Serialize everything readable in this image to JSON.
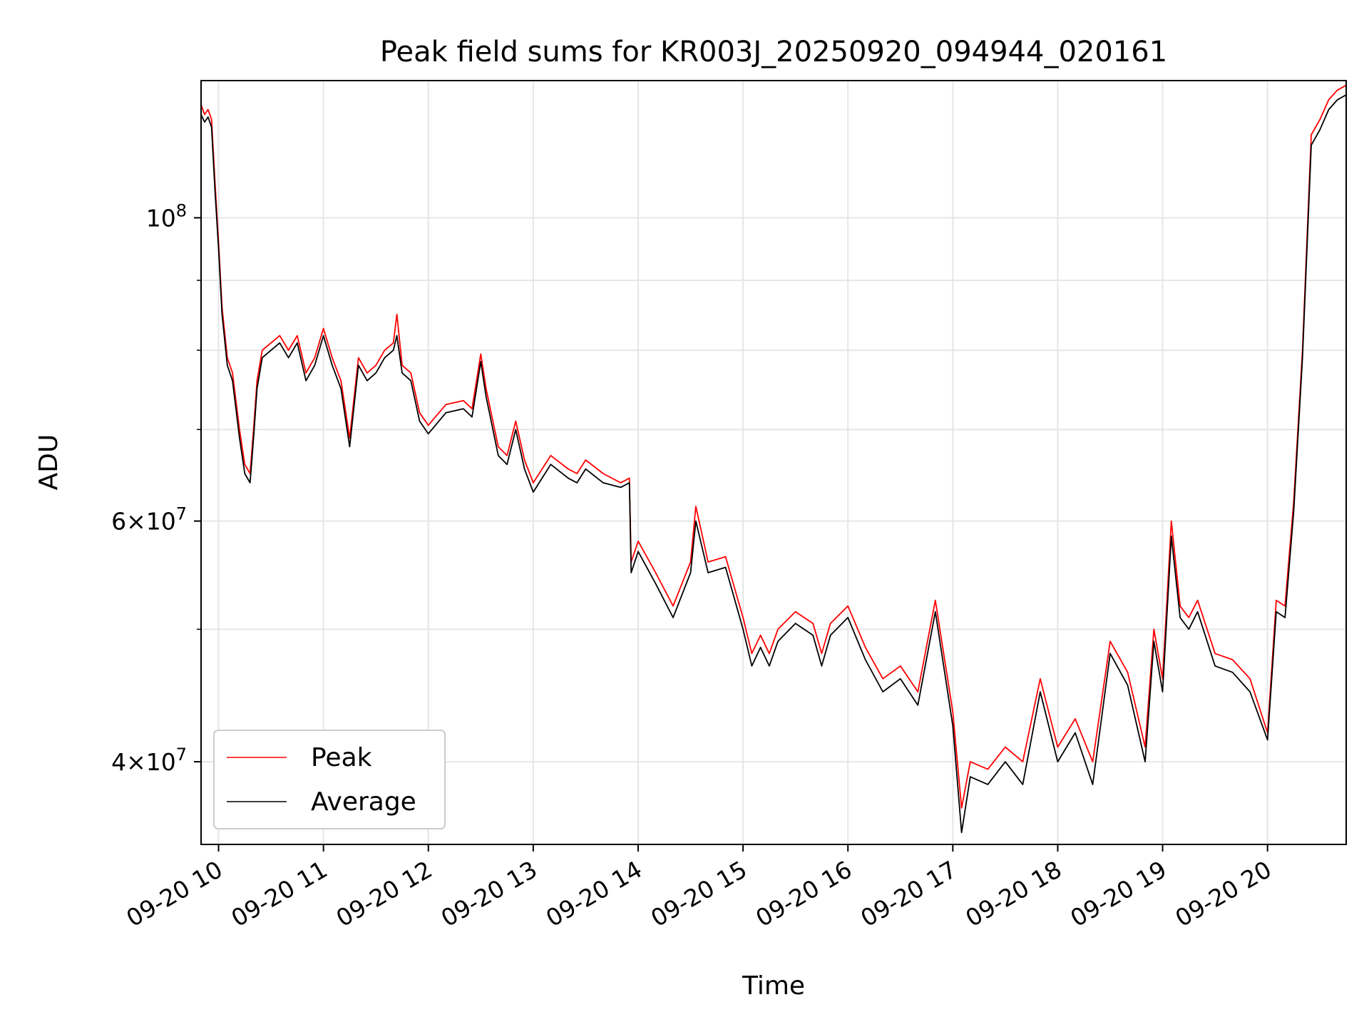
{
  "chart_data": {
    "type": "line",
    "title": "Peak field sums for KR003J_20250920_094944_020161",
    "xlabel": "Time",
    "ylabel": "ADU",
    "x_range_hours": [
      "2025-09-20 09:50",
      "2025-09-20 20:45"
    ],
    "ylim": [
      34800000,
      126000000
    ],
    "yscale": "log",
    "grid": true,
    "legend_position": "lower-left",
    "x_tick_labels": [
      "09-20 10",
      "09-20 11",
      "09-20 12",
      "09-20 13",
      "09-20 14",
      "09-20 15",
      "09-20 16",
      "09-20 17",
      "09-20 18",
      "09-20 19",
      "09-20 20"
    ],
    "x_ticks": [
      "2025-09-20 10:00",
      "2025-09-20 11:00",
      "2025-09-20 12:00",
      "2025-09-20 13:00",
      "2025-09-20 14:00",
      "2025-09-20 15:00",
      "2025-09-20 16:00",
      "2025-09-20 17:00",
      "2025-09-20 18:00",
      "2025-09-20 19:00",
      "2025-09-20 20:00"
    ],
    "y_major_ticks": [
      {
        "value": 40000000,
        "mantissa": "4",
        "exponent": "7"
      },
      {
        "value": 60000000,
        "mantissa": "6",
        "exponent": "7"
      },
      {
        "value": 100000000,
        "mantissa": "",
        "exponent": "8"
      }
    ],
    "y_minor_ticks": [
      50000000,
      70000000,
      80000000,
      90000000
    ],
    "series": [
      {
        "name": "Peak",
        "color": "#ff0000",
        "x": [
          "2025-09-20 09:50",
          "2025-09-20 09:52",
          "2025-09-20 09:54",
          "2025-09-20 09:56",
          "2025-09-20 09:58",
          "2025-09-20 10:00",
          "2025-09-20 10:02",
          "2025-09-20 10:05",
          "2025-09-20 10:08",
          "2025-09-20 10:12",
          "2025-09-20 10:15",
          "2025-09-20 10:18",
          "2025-09-20 10:20",
          "2025-09-20 10:22",
          "2025-09-20 10:25",
          "2025-09-20 10:30",
          "2025-09-20 10:35",
          "2025-09-20 10:40",
          "2025-09-20 10:45",
          "2025-09-20 10:50",
          "2025-09-20 10:55",
          "2025-09-20 11:00",
          "2025-09-20 11:05",
          "2025-09-20 11:10",
          "2025-09-20 11:15",
          "2025-09-20 11:20",
          "2025-09-20 11:25",
          "2025-09-20 11:30",
          "2025-09-20 11:35",
          "2025-09-20 11:40",
          "2025-09-20 11:42",
          "2025-09-20 11:45",
          "2025-09-20 11:50",
          "2025-09-20 11:55",
          "2025-09-20 12:00",
          "2025-09-20 12:10",
          "2025-09-20 12:20",
          "2025-09-20 12:25",
          "2025-09-20 12:30",
          "2025-09-20 12:33",
          "2025-09-20 12:40",
          "2025-09-20 12:45",
          "2025-09-20 12:50",
          "2025-09-20 12:55",
          "2025-09-20 13:00",
          "2025-09-20 13:10",
          "2025-09-20 13:20",
          "2025-09-20 13:25",
          "2025-09-20 13:30",
          "2025-09-20 13:40",
          "2025-09-20 13:50",
          "2025-09-20 13:55",
          "2025-09-20 13:56",
          "2025-09-20 14:00",
          "2025-09-20 14:10",
          "2025-09-20 14:20",
          "2025-09-20 14:30",
          "2025-09-20 14:33",
          "2025-09-20 14:40",
          "2025-09-20 14:50",
          "2025-09-20 15:00",
          "2025-09-20 15:05",
          "2025-09-20 15:10",
          "2025-09-20 15:15",
          "2025-09-20 15:20",
          "2025-09-20 15:30",
          "2025-09-20 15:40",
          "2025-09-20 15:45",
          "2025-09-20 15:50",
          "2025-09-20 16:00",
          "2025-09-20 16:10",
          "2025-09-20 16:20",
          "2025-09-20 16:30",
          "2025-09-20 16:40",
          "2025-09-20 16:50",
          "2025-09-20 17:00",
          "2025-09-20 17:05",
          "2025-09-20 17:10",
          "2025-09-20 17:20",
          "2025-09-20 17:30",
          "2025-09-20 17:40",
          "2025-09-20 17:50",
          "2025-09-20 18:00",
          "2025-09-20 18:10",
          "2025-09-20 18:20",
          "2025-09-20 18:30",
          "2025-09-20 18:40",
          "2025-09-20 18:50",
          "2025-09-20 18:55",
          "2025-09-20 19:00",
          "2025-09-20 19:05",
          "2025-09-20 19:10",
          "2025-09-20 19:15",
          "2025-09-20 19:20",
          "2025-09-20 19:30",
          "2025-09-20 19:40",
          "2025-09-20 19:50",
          "2025-09-20 20:00",
          "2025-09-20 20:05",
          "2025-09-20 20:10",
          "2025-09-20 20:15",
          "2025-09-20 20:20",
          "2025-09-20 20:25",
          "2025-09-20 20:30",
          "2025-09-20 20:35",
          "2025-09-20 20:40",
          "2025-09-20 20:45"
        ],
        "values": [
          121000000,
          119000000,
          120000000,
          118000000,
          106000000,
          96000000,
          86000000,
          79000000,
          77000000,
          70000000,
          66000000,
          65000000,
          70000000,
          76000000,
          80000000,
          81000000,
          82000000,
          80000000,
          82000000,
          77000000,
          79000000,
          83000000,
          79000000,
          76000000,
          69000000,
          79000000,
          77000000,
          78000000,
          80000000,
          81000000,
          85000000,
          78000000,
          77000000,
          72000000,
          70500000,
          73000000,
          73500000,
          72500000,
          79500000,
          75000000,
          68000000,
          67000000,
          71000000,
          66500000,
          64000000,
          67000000,
          65500000,
          65000000,
          66500000,
          65000000,
          64000000,
          64500000,
          56000000,
          58000000,
          55000000,
          52000000,
          56000000,
          61500000,
          56000000,
          56500000,
          51000000,
          48000000,
          49500000,
          48000000,
          50000000,
          51500000,
          50500000,
          48000000,
          50500000,
          52000000,
          48500000,
          46000000,
          47000000,
          45000000,
          52500000,
          43500000,
          37000000,
          40000000,
          39500000,
          41000000,
          40000000,
          46000000,
          41000000,
          43000000,
          40000000,
          49000000,
          46500000,
          41000000,
          50000000,
          46000000,
          60000000,
          52000000,
          51000000,
          52500000,
          48000000,
          47500000,
          46000000,
          42000000,
          52500000,
          52000000,
          62000000,
          80000000,
          115000000,
          118000000,
          122000000,
          124000000,
          125000000
        ]
      },
      {
        "name": "Average",
        "color": "#000000",
        "x": [
          "2025-09-20 09:50",
          "2025-09-20 09:52",
          "2025-09-20 09:54",
          "2025-09-20 09:56",
          "2025-09-20 09:58",
          "2025-09-20 10:00",
          "2025-09-20 10:02",
          "2025-09-20 10:05",
          "2025-09-20 10:08",
          "2025-09-20 10:12",
          "2025-09-20 10:15",
          "2025-09-20 10:18",
          "2025-09-20 10:20",
          "2025-09-20 10:22",
          "2025-09-20 10:25",
          "2025-09-20 10:30",
          "2025-09-20 10:35",
          "2025-09-20 10:40",
          "2025-09-20 10:45",
          "2025-09-20 10:50",
          "2025-09-20 10:55",
          "2025-09-20 11:00",
          "2025-09-20 11:05",
          "2025-09-20 11:10",
          "2025-09-20 11:15",
          "2025-09-20 11:20",
          "2025-09-20 11:25",
          "2025-09-20 11:30",
          "2025-09-20 11:35",
          "2025-09-20 11:40",
          "2025-09-20 11:42",
          "2025-09-20 11:45",
          "2025-09-20 11:50",
          "2025-09-20 11:55",
          "2025-09-20 12:00",
          "2025-09-20 12:10",
          "2025-09-20 12:20",
          "2025-09-20 12:25",
          "2025-09-20 12:30",
          "2025-09-20 12:33",
          "2025-09-20 12:40",
          "2025-09-20 12:45",
          "2025-09-20 12:50",
          "2025-09-20 12:55",
          "2025-09-20 13:00",
          "2025-09-20 13:10",
          "2025-09-20 13:20",
          "2025-09-20 13:25",
          "2025-09-20 13:30",
          "2025-09-20 13:40",
          "2025-09-20 13:50",
          "2025-09-20 13:55",
          "2025-09-20 13:56",
          "2025-09-20 14:00",
          "2025-09-20 14:10",
          "2025-09-20 14:20",
          "2025-09-20 14:30",
          "2025-09-20 14:33",
          "2025-09-20 14:40",
          "2025-09-20 14:50",
          "2025-09-20 15:00",
          "2025-09-20 15:05",
          "2025-09-20 15:10",
          "2025-09-20 15:15",
          "2025-09-20 15:20",
          "2025-09-20 15:30",
          "2025-09-20 15:40",
          "2025-09-20 15:45",
          "2025-09-20 15:50",
          "2025-09-20 16:00",
          "2025-09-20 16:10",
          "2025-09-20 16:20",
          "2025-09-20 16:30",
          "2025-09-20 16:40",
          "2025-09-20 16:50",
          "2025-09-20 17:00",
          "2025-09-20 17:05",
          "2025-09-20 17:10",
          "2025-09-20 17:20",
          "2025-09-20 17:30",
          "2025-09-20 17:40",
          "2025-09-20 17:50",
          "2025-09-20 18:00",
          "2025-09-20 18:10",
          "2025-09-20 18:20",
          "2025-09-20 18:30",
          "2025-09-20 18:40",
          "2025-09-20 18:50",
          "2025-09-20 18:55",
          "2025-09-20 19:00",
          "2025-09-20 19:05",
          "2025-09-20 19:10",
          "2025-09-20 19:15",
          "2025-09-20 19:20",
          "2025-09-20 19:30",
          "2025-09-20 19:40",
          "2025-09-20 19:50",
          "2025-09-20 20:00",
          "2025-09-20 20:05",
          "2025-09-20 20:10",
          "2025-09-20 20:15",
          "2025-09-20 20:20",
          "2025-09-20 20:25",
          "2025-09-20 20:30",
          "2025-09-20 20:35",
          "2025-09-20 20:40",
          "2025-09-20 20:45"
        ],
        "values": [
          119000000,
          117500000,
          118500000,
          116500000,
          104500000,
          95000000,
          85000000,
          78000000,
          76000000,
          69000000,
          65000000,
          64000000,
          69000000,
          75000000,
          79000000,
          80000000,
          81000000,
          79000000,
          81000000,
          76000000,
          78000000,
          82000000,
          78000000,
          75000000,
          68000000,
          78000000,
          76000000,
          77000000,
          79000000,
          80000000,
          82000000,
          77000000,
          76000000,
          71000000,
          69500000,
          72000000,
          72500000,
          71500000,
          78500000,
          74000000,
          67000000,
          66000000,
          70000000,
          65500000,
          63000000,
          66000000,
          64500000,
          64000000,
          65500000,
          64000000,
          63500000,
          64000000,
          55000000,
          57000000,
          54000000,
          51000000,
          55000000,
          60000000,
          55000000,
          55500000,
          50000000,
          47000000,
          48500000,
          47000000,
          49000000,
          50500000,
          49500000,
          47000000,
          49500000,
          51000000,
          47500000,
          45000000,
          46000000,
          44000000,
          51500000,
          42500000,
          35500000,
          39000000,
          38500000,
          40000000,
          38500000,
          45000000,
          40000000,
          42000000,
          38500000,
          48000000,
          45500000,
          40000000,
          49000000,
          45000000,
          58500000,
          51000000,
          50000000,
          51500000,
          47000000,
          46500000,
          45000000,
          41500000,
          51500000,
          51000000,
          61000000,
          79000000,
          113000000,
          116000000,
          120000000,
          122000000,
          123000000
        ]
      }
    ],
    "legend": [
      {
        "name": "Peak",
        "color": "#ff0000"
      },
      {
        "name": "Average",
        "color": "#000000"
      }
    ]
  }
}
